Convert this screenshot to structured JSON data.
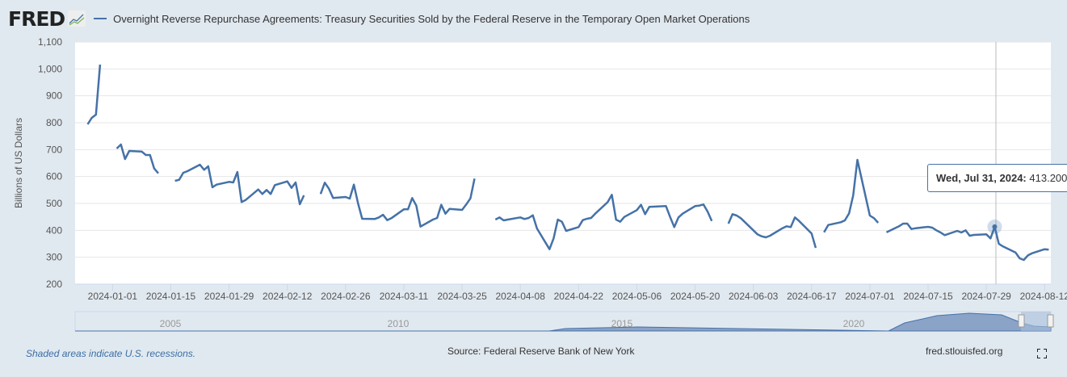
{
  "header": {
    "logo": "FRED",
    "title": "Overnight Reverse Repurchase Agreements: Treasury Securities Sold by the Federal Reserve in the Temporary Open Market Operations"
  },
  "tooltip": {
    "date": "Wed, Jul 31, 2024:",
    "value": "413.200"
  },
  "footer": {
    "recessions": "Shaded areas indicate U.S. recessions.",
    "source": "Source: Federal Reserve Bank of New York",
    "site": "fred.stlouisfed.org"
  },
  "colors": {
    "line": "#4572a7",
    "background": "#e1e9f0"
  },
  "chart_data": {
    "type": "line",
    "title": "Overnight Reverse Repurchase Agreements: Treasury Securities Sold by the Federal Reserve in the Temporary Open Market Operations",
    "ylabel": "Billions of US Dollars",
    "xlabel": "",
    "ylim": [
      200,
      1100
    ],
    "xlim": [
      "2023-12-23",
      "2024-08-13"
    ],
    "yticks": [
      "200",
      "300",
      "400",
      "500",
      "600",
      "700",
      "800",
      "900",
      "1,000",
      "1,100"
    ],
    "xticks": [
      "2024-01-01",
      "2024-01-15",
      "2024-01-29",
      "2024-02-12",
      "2024-02-26",
      "2024-03-11",
      "2024-03-25",
      "2024-04-08",
      "2024-04-22",
      "2024-05-06",
      "2024-05-20",
      "2024-06-03",
      "2024-06-17",
      "2024-07-01",
      "2024-07-15",
      "2024-07-29",
      "2024-08-12"
    ],
    "navigator_labels": [
      "2005",
      "2010",
      "2015",
      "2020"
    ],
    "grid": true,
    "series": [
      {
        "name": "Overnight Reverse Repurchase Agreements",
        "points": [
          [
            "2023-12-26",
            794
          ],
          [
            "2023-12-27",
            818
          ],
          [
            "2023-12-28",
            830
          ],
          [
            "2023-12-29",
            1016
          ],
          [
            "2024-01-01",
            null
          ],
          [
            "2024-01-02",
            704
          ],
          [
            "2024-01-03",
            719
          ],
          [
            "2024-01-04",
            665
          ],
          [
            "2024-01-05",
            695
          ],
          [
            "2024-01-08",
            693
          ],
          [
            "2024-01-09",
            680
          ],
          [
            "2024-01-10",
            680
          ],
          [
            "2024-01-11",
            630
          ],
          [
            "2024-01-12",
            612
          ],
          [
            "2024-01-15",
            null
          ],
          [
            "2024-01-16",
            584
          ],
          [
            "2024-01-17",
            588
          ],
          [
            "2024-01-18",
            614
          ],
          [
            "2024-01-19",
            620
          ],
          [
            "2024-01-22",
            644
          ],
          [
            "2024-01-23",
            625
          ],
          [
            "2024-01-24",
            638
          ],
          [
            "2024-01-25",
            560
          ],
          [
            "2024-01-26",
            570
          ],
          [
            "2024-01-29",
            580
          ],
          [
            "2024-01-30",
            578
          ],
          [
            "2024-01-31",
            617
          ],
          [
            "2024-02-01",
            505
          ],
          [
            "2024-02-02",
            513
          ],
          [
            "2024-02-05",
            552
          ],
          [
            "2024-02-06",
            535
          ],
          [
            "2024-02-07",
            550
          ],
          [
            "2024-02-08",
            535
          ],
          [
            "2024-02-09",
            568
          ],
          [
            "2024-02-12",
            582
          ],
          [
            "2024-02-13",
            558
          ],
          [
            "2024-02-14",
            578
          ],
          [
            "2024-02-15",
            497
          ],
          [
            "2024-02-16",
            530
          ],
          [
            "2024-02-19",
            null
          ],
          [
            "2024-02-20",
            535
          ],
          [
            "2024-02-21",
            577
          ],
          [
            "2024-02-22",
            555
          ],
          [
            "2024-02-23",
            520
          ],
          [
            "2024-02-26",
            524
          ],
          [
            "2024-02-27",
            518
          ],
          [
            "2024-02-28",
            570
          ],
          [
            "2024-02-29",
            500
          ],
          [
            "2024-03-01",
            443
          ],
          [
            "2024-03-04",
            442
          ],
          [
            "2024-03-05",
            448
          ],
          [
            "2024-03-06",
            458
          ],
          [
            "2024-03-07",
            438
          ],
          [
            "2024-03-08",
            445
          ],
          [
            "2024-03-11",
            478
          ],
          [
            "2024-03-12",
            478
          ],
          [
            "2024-03-13",
            520
          ],
          [
            "2024-03-14",
            492
          ],
          [
            "2024-03-15",
            414
          ],
          [
            "2024-03-18",
            440
          ],
          [
            "2024-03-19",
            446
          ],
          [
            "2024-03-20",
            495
          ],
          [
            "2024-03-21",
            462
          ],
          [
            "2024-03-22",
            480
          ],
          [
            "2024-03-25",
            476
          ],
          [
            "2024-03-26",
            496
          ],
          [
            "2024-03-27",
            519
          ],
          [
            "2024-03-28",
            592
          ],
          [
            "2024-03-29",
            null
          ],
          [
            "2024-04-02",
            440
          ],
          [
            "2024-04-03",
            448
          ],
          [
            "2024-04-04",
            437
          ],
          [
            "2024-04-05",
            440
          ],
          [
            "2024-04-08",
            448
          ],
          [
            "2024-04-09",
            442
          ],
          [
            "2024-04-10",
            446
          ],
          [
            "2024-04-11",
            456
          ],
          [
            "2024-04-12",
            407
          ],
          [
            "2024-04-15",
            330
          ],
          [
            "2024-04-16",
            370
          ],
          [
            "2024-04-17",
            440
          ],
          [
            "2024-04-18",
            432
          ],
          [
            "2024-04-19",
            398
          ],
          [
            "2024-04-22",
            412
          ],
          [
            "2024-04-23",
            438
          ],
          [
            "2024-04-24",
            443
          ],
          [
            "2024-04-25",
            446
          ],
          [
            "2024-04-26",
            462
          ],
          [
            "2024-04-29",
            505
          ],
          [
            "2024-04-30",
            532
          ],
          [
            "2024-05-01",
            440
          ],
          [
            "2024-05-02",
            432
          ],
          [
            "2024-05-03",
            450
          ],
          [
            "2024-05-06",
            475
          ],
          [
            "2024-05-07",
            495
          ],
          [
            "2024-05-08",
            460
          ],
          [
            "2024-05-09",
            487
          ],
          [
            "2024-05-10",
            488
          ],
          [
            "2024-05-13",
            490
          ],
          [
            "2024-05-14",
            450
          ],
          [
            "2024-05-15",
            412
          ],
          [
            "2024-05-16",
            448
          ],
          [
            "2024-05-17",
            462
          ],
          [
            "2024-05-20",
            490
          ],
          [
            "2024-05-21",
            492
          ],
          [
            "2024-05-22",
            496
          ],
          [
            "2024-05-23",
            470
          ],
          [
            "2024-05-24",
            435
          ],
          [
            "2024-05-27",
            null
          ],
          [
            "2024-05-28",
            425
          ],
          [
            "2024-05-29",
            460
          ],
          [
            "2024-05-30",
            455
          ],
          [
            "2024-05-31",
            445
          ],
          [
            "2024-06-03",
            400
          ],
          [
            "2024-06-04",
            385
          ],
          [
            "2024-06-05",
            378
          ],
          [
            "2024-06-06",
            374
          ],
          [
            "2024-06-07",
            380
          ],
          [
            "2024-06-10",
            408
          ],
          [
            "2024-06-11",
            415
          ],
          [
            "2024-06-12",
            412
          ],
          [
            "2024-06-13",
            448
          ],
          [
            "2024-06-14",
            435
          ],
          [
            "2024-06-17",
            388
          ],
          [
            "2024-06-18",
            335
          ],
          [
            "2024-06-19",
            null
          ],
          [
            "2024-06-20",
            393
          ],
          [
            "2024-06-21",
            420
          ],
          [
            "2024-06-24",
            430
          ],
          [
            "2024-06-25",
            437
          ],
          [
            "2024-06-26",
            463
          ],
          [
            "2024-06-27",
            530
          ],
          [
            "2024-06-28",
            662
          ],
          [
            "2024-07-01",
            455
          ],
          [
            "2024-07-02",
            445
          ],
          [
            "2024-07-03",
            428
          ],
          [
            "2024-07-04",
            null
          ],
          [
            "2024-07-05",
            393
          ],
          [
            "2024-07-08",
            415
          ],
          [
            "2024-07-09",
            425
          ],
          [
            "2024-07-10",
            425
          ],
          [
            "2024-07-11",
            405
          ],
          [
            "2024-07-12",
            408
          ],
          [
            "2024-07-15",
            413
          ],
          [
            "2024-07-16",
            410
          ],
          [
            "2024-07-17",
            400
          ],
          [
            "2024-07-18",
            392
          ],
          [
            "2024-07-19",
            382
          ],
          [
            "2024-07-22",
            398
          ],
          [
            "2024-07-23",
            392
          ],
          [
            "2024-07-24",
            400
          ],
          [
            "2024-07-25",
            380
          ],
          [
            "2024-07-26",
            383
          ],
          [
            "2024-07-29",
            385
          ],
          [
            "2024-07-30",
            370
          ],
          [
            "2024-07-31",
            413.2
          ],
          [
            "2024-08-01",
            350
          ],
          [
            "2024-08-02",
            340
          ],
          [
            "2024-08-05",
            318
          ],
          [
            "2024-08-06",
            296
          ],
          [
            "2024-08-07",
            290
          ],
          [
            "2024-08-08",
            307
          ],
          [
            "2024-08-09",
            315
          ],
          [
            "2024-08-12",
            330
          ],
          [
            "2024-08-13",
            328
          ]
        ]
      }
    ]
  }
}
